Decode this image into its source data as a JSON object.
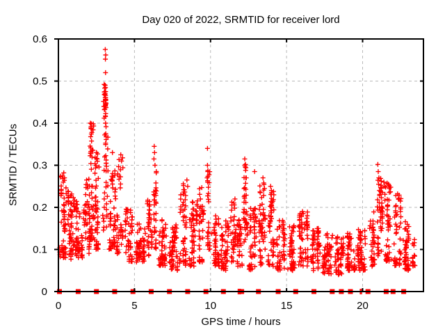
{
  "chart_data": {
    "type": "scatter",
    "title": "Day 020 of 2022, SRMTID for receiver lord",
    "xlabel": "GPS time / hours",
    "ylabel": "SRMTID / TECUs",
    "xlim": [
      0,
      24
    ],
    "ylim": [
      0,
      0.6
    ],
    "xticks": {
      "values": [
        0,
        5,
        10,
        15,
        20
      ],
      "labels": [
        "0",
        "5",
        "10",
        "15",
        "20"
      ]
    },
    "yticks": {
      "values": [
        0,
        0.1,
        0.2,
        0.3,
        0.4,
        0.5,
        0.6
      ],
      "labels": [
        "0",
        "0.1",
        "0.2",
        "0.3",
        "0.4",
        "0.5",
        "0.6"
      ]
    },
    "grid": true,
    "legend": "none",
    "marker": {
      "shape": "plus",
      "color": "#ff0000",
      "size": 7
    },
    "colors": {
      "grid": "#b8b8b8",
      "axis": "#000000",
      "text": "#000000",
      "data": "#ff0000"
    },
    "point_clusters": [
      {
        "x": 0.35,
        "dx": 0.25,
        "ymin": 0.08,
        "ymax": 0.28,
        "n": 55
      },
      {
        "x": 0.85,
        "dx": 0.22,
        "ymin": 0.07,
        "ymax": 0.24,
        "n": 55
      },
      {
        "x": 1.35,
        "dx": 0.22,
        "ymin": 0.08,
        "ymax": 0.22,
        "n": 48
      },
      {
        "x": 1.85,
        "dx": 0.22,
        "ymin": 0.09,
        "ymax": 0.27,
        "n": 48
      },
      {
        "x": 2.2,
        "dx": 0.13,
        "ymin": 0.12,
        "ymax": 0.4,
        "n": 38
      },
      {
        "x": 2.55,
        "dx": 0.18,
        "ymin": 0.1,
        "ymax": 0.33,
        "n": 45
      },
      {
        "x": 3.1,
        "dx": 0.16,
        "ymin": 0.14,
        "ymax": 0.5,
        "n": 60
      },
      {
        "x": 3.55,
        "dx": 0.2,
        "ymin": 0.1,
        "ymax": 0.35,
        "n": 50
      },
      {
        "x": 4.05,
        "dx": 0.2,
        "ymin": 0.09,
        "ymax": 0.32,
        "n": 42
      },
      {
        "x": 4.65,
        "dx": 0.28,
        "ymin": 0.07,
        "ymax": 0.2,
        "n": 46
      },
      {
        "x": 5.4,
        "dx": 0.33,
        "ymin": 0.07,
        "ymax": 0.17,
        "n": 56
      },
      {
        "x": 6.0,
        "dx": 0.18,
        "ymin": 0.08,
        "ymax": 0.22,
        "n": 36
      },
      {
        "x": 6.35,
        "dx": 0.1,
        "ymin": 0.1,
        "ymax": 0.33,
        "n": 30
      },
      {
        "x": 6.85,
        "dx": 0.28,
        "ymin": 0.06,
        "ymax": 0.18,
        "n": 52
      },
      {
        "x": 7.55,
        "dx": 0.3,
        "ymin": 0.05,
        "ymax": 0.16,
        "n": 55
      },
      {
        "x": 8.2,
        "dx": 0.22,
        "ymin": 0.06,
        "ymax": 0.26,
        "n": 50
      },
      {
        "x": 8.85,
        "dx": 0.28,
        "ymin": 0.06,
        "ymax": 0.22,
        "n": 55
      },
      {
        "x": 9.4,
        "dx": 0.16,
        "ymin": 0.07,
        "ymax": 0.25,
        "n": 36
      },
      {
        "x": 9.85,
        "dx": 0.1,
        "ymin": 0.1,
        "ymax": 0.3,
        "n": 26
      },
      {
        "x": 10.3,
        "dx": 0.24,
        "ymin": 0.06,
        "ymax": 0.18,
        "n": 46
      },
      {
        "x": 10.95,
        "dx": 0.28,
        "ymin": 0.05,
        "ymax": 0.17,
        "n": 52
      },
      {
        "x": 11.5,
        "dx": 0.16,
        "ymin": 0.07,
        "ymax": 0.22,
        "n": 36
      },
      {
        "x": 11.9,
        "dx": 0.16,
        "ymin": 0.06,
        "ymax": 0.18,
        "n": 36
      },
      {
        "x": 12.3,
        "dx": 0.13,
        "ymin": 0.1,
        "ymax": 0.3,
        "n": 36
      },
      {
        "x": 12.75,
        "dx": 0.26,
        "ymin": 0.05,
        "ymax": 0.2,
        "n": 50
      },
      {
        "x": 13.4,
        "dx": 0.22,
        "ymin": 0.06,
        "ymax": 0.26,
        "n": 50
      },
      {
        "x": 14.0,
        "dx": 0.22,
        "ymin": 0.06,
        "ymax": 0.24,
        "n": 50
      },
      {
        "x": 14.65,
        "dx": 0.28,
        "ymin": 0.05,
        "ymax": 0.17,
        "n": 50
      },
      {
        "x": 15.35,
        "dx": 0.28,
        "ymin": 0.05,
        "ymax": 0.16,
        "n": 50
      },
      {
        "x": 16.1,
        "dx": 0.32,
        "ymin": 0.06,
        "ymax": 0.19,
        "n": 60
      },
      {
        "x": 16.9,
        "dx": 0.32,
        "ymin": 0.05,
        "ymax": 0.15,
        "n": 55
      },
      {
        "x": 17.7,
        "dx": 0.32,
        "ymin": 0.04,
        "ymax": 0.14,
        "n": 55
      },
      {
        "x": 18.5,
        "dx": 0.32,
        "ymin": 0.04,
        "ymax": 0.13,
        "n": 50
      },
      {
        "x": 19.25,
        "dx": 0.28,
        "ymin": 0.05,
        "ymax": 0.14,
        "n": 50
      },
      {
        "x": 20.0,
        "dx": 0.32,
        "ymin": 0.05,
        "ymax": 0.15,
        "n": 55
      },
      {
        "x": 20.65,
        "dx": 0.18,
        "ymin": 0.06,
        "ymax": 0.2,
        "n": 36
      },
      {
        "x": 21.15,
        "dx": 0.18,
        "ymin": 0.08,
        "ymax": 0.27,
        "n": 46
      },
      {
        "x": 21.7,
        "dx": 0.22,
        "ymin": 0.07,
        "ymax": 0.26,
        "n": 50
      },
      {
        "x": 22.3,
        "dx": 0.22,
        "ymin": 0.06,
        "ymax": 0.23,
        "n": 46
      },
      {
        "x": 22.9,
        "dx": 0.22,
        "ymin": 0.05,
        "ymax": 0.17,
        "n": 46
      },
      {
        "x": 23.35,
        "dx": 0.1,
        "ymin": 0.06,
        "ymax": 0.13,
        "n": 16
      }
    ],
    "peak_points": [
      [
        0.35,
        0.282
      ],
      [
        0.4,
        0.27
      ],
      [
        0.32,
        0.26
      ],
      [
        1.85,
        0.265
      ],
      [
        2.1,
        0.4
      ],
      [
        2.15,
        0.392
      ],
      [
        2.2,
        0.378
      ],
      [
        2.12,
        0.368
      ],
      [
        2.5,
        0.33
      ],
      [
        2.55,
        0.315
      ],
      [
        3.08,
        0.575
      ],
      [
        3.11,
        0.562
      ],
      [
        3.09,
        0.552
      ],
      [
        3.1,
        0.52
      ],
      [
        3.07,
        0.47
      ],
      [
        3.12,
        0.455
      ],
      [
        3.09,
        0.443
      ],
      [
        3.13,
        0.437
      ],
      [
        3.1,
        0.4
      ],
      [
        3.05,
        0.372
      ],
      [
        3.55,
        0.33
      ],
      [
        4.1,
        0.325
      ],
      [
        4.15,
        0.31
      ],
      [
        6.3,
        0.345
      ],
      [
        6.32,
        0.33
      ],
      [
        6.28,
        0.315
      ],
      [
        6.35,
        0.3
      ],
      [
        8.45,
        0.265
      ],
      [
        8.5,
        0.25
      ],
      [
        9.8,
        0.34
      ],
      [
        9.8,
        0.3
      ],
      [
        9.82,
        0.285
      ],
      [
        9.78,
        0.27
      ],
      [
        12.25,
        0.315
      ],
      [
        12.3,
        0.302
      ],
      [
        12.28,
        0.296
      ],
      [
        12.33,
        0.294
      ],
      [
        12.31,
        0.288
      ],
      [
        12.35,
        0.27
      ],
      [
        12.9,
        0.285
      ],
      [
        13.45,
        0.27
      ],
      [
        13.5,
        0.258
      ],
      [
        13.55,
        0.245
      ],
      [
        13.95,
        0.25
      ],
      [
        14.0,
        0.24
      ],
      [
        16.05,
        0.19
      ],
      [
        16.1,
        0.185
      ],
      [
        21.0,
        0.302
      ],
      [
        21.03,
        0.285
      ],
      [
        21.07,
        0.27
      ],
      [
        21.05,
        0.255
      ],
      [
        21.1,
        0.24
      ],
      [
        21.12,
        0.228
      ],
      [
        21.4,
        0.26
      ],
      [
        21.45,
        0.25
      ],
      [
        21.7,
        0.255
      ],
      [
        21.75,
        0.245
      ],
      [
        22.3,
        0.232
      ],
      [
        22.35,
        0.22
      ]
    ],
    "zero_marker_hours": [
      0.07,
      1.3,
      2.5,
      3.7,
      4.9,
      6.1,
      7.3,
      8.5,
      9.7,
      10.85,
      12.05,
      13.15,
      14.45,
      15.6,
      16.8,
      18.0,
      18.6,
      19.2,
      20.35,
      21.55,
      22.0,
      22.7
    ],
    "zero_tick_hours": [
      11.82,
      11.9,
      11.97,
      19.85,
      19.93
    ]
  }
}
